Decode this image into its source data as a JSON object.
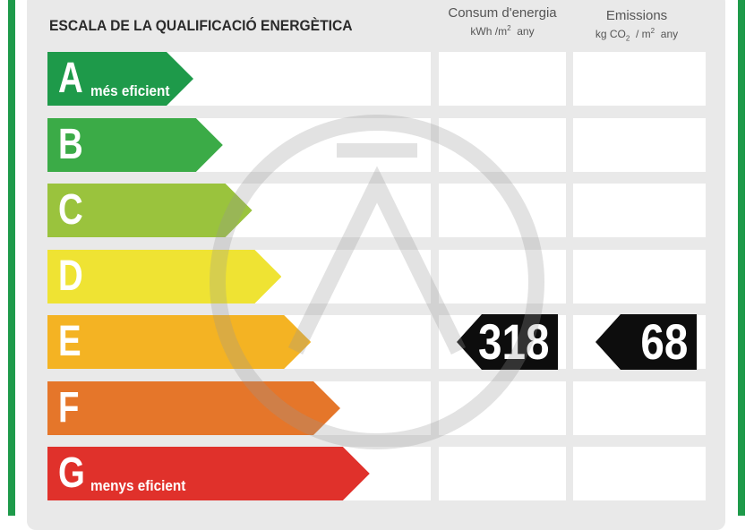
{
  "title": "ESCALA DE LA QUALIFICACIÓ ENERGÈTICA",
  "columns": {
    "consum": {
      "label": "Consum d'energia",
      "unit_prefix": "kWh /m",
      "unit_exp": "2",
      "unit_suffix": "any"
    },
    "emissions": {
      "label": "Emissions",
      "unit_prefix": "kg CO",
      "unit_sub": "2",
      "unit_mid": "/ m",
      "unit_exp": "2",
      "unit_suffix": "any"
    }
  },
  "ratings": [
    {
      "letter": "A",
      "sublabel": "més eficient",
      "color": "#1e9a4a"
    },
    {
      "letter": "B",
      "sublabel": "",
      "color": "#3bab47"
    },
    {
      "letter": "C",
      "sublabel": "",
      "color": "#9ac33d"
    },
    {
      "letter": "D",
      "sublabel": "",
      "color": "#efe333"
    },
    {
      "letter": "E",
      "sublabel": "",
      "color": "#f4b323"
    },
    {
      "letter": "F",
      "sublabel": "",
      "color": "#e5762a"
    },
    {
      "letter": "G",
      "sublabel": "menys eficient",
      "color": "#e0312b"
    }
  ],
  "result": {
    "rating": "E",
    "consum_value": "318",
    "emissions_value": "68"
  }
}
